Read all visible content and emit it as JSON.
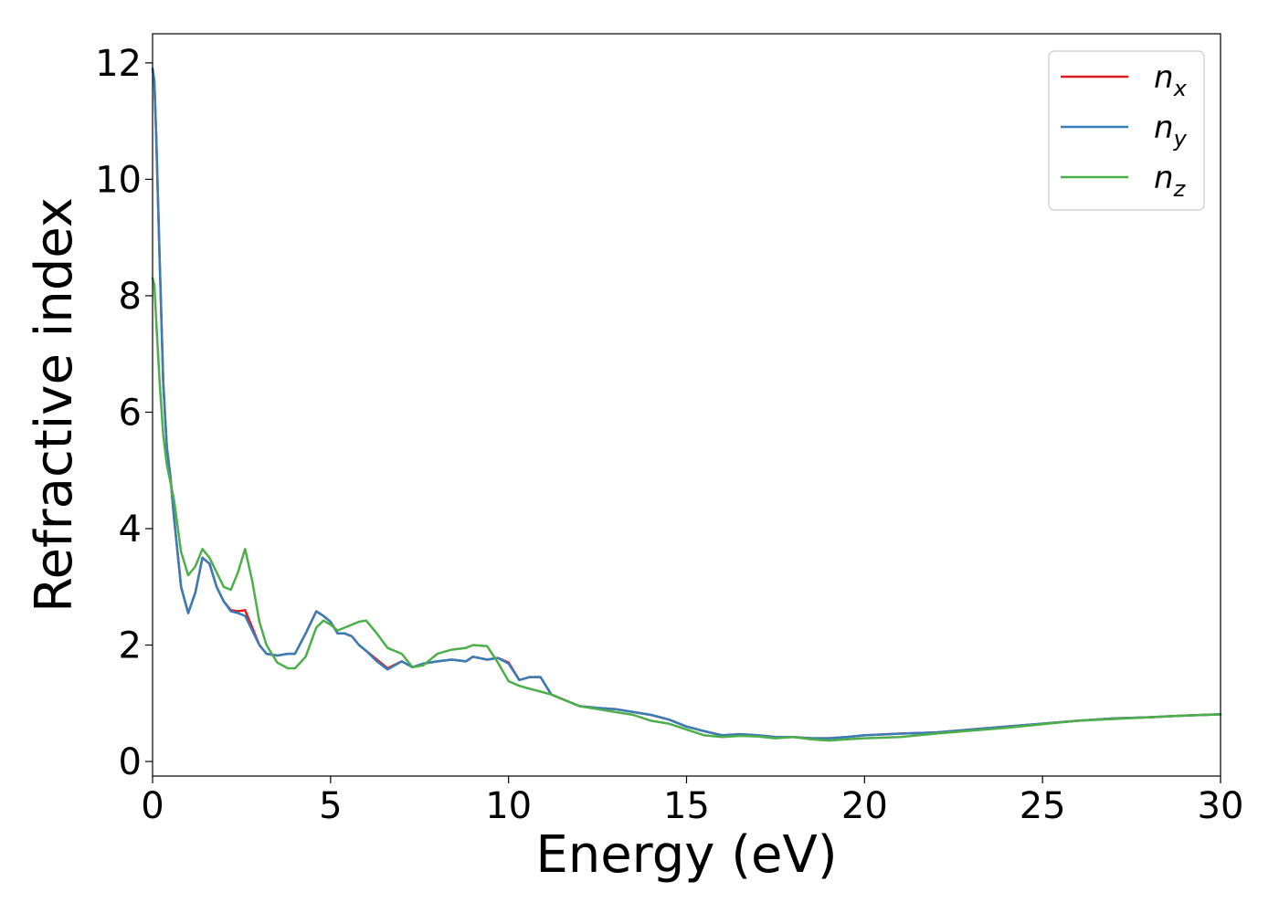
{
  "chart_data": {
    "type": "line",
    "title": "",
    "xlabel": "Energy (eV)",
    "ylabel": "Refractive index",
    "xlim": [
      0,
      30
    ],
    "ylim": [
      -0.25,
      12.5
    ],
    "xticks": [
      0,
      5,
      10,
      15,
      20,
      25,
      30
    ],
    "xtick_labels": [
      "0",
      "5",
      "10",
      "15",
      "20",
      "25",
      "30"
    ],
    "yticks": [
      0,
      2,
      4,
      6,
      8,
      10,
      12
    ],
    "ytick_labels": [
      "0",
      "2",
      "4",
      "6",
      "8",
      "10",
      "12"
    ],
    "grid": false,
    "legend_position": "top-right",
    "series": [
      {
        "name": "n",
        "subscript": "x",
        "color": "#e41a1c",
        "x": [
          0,
          0.05,
          0.1,
          0.2,
          0.3,
          0.4,
          0.5,
          0.6,
          0.8,
          1.0,
          1.2,
          1.4,
          1.6,
          1.8,
          2.0,
          2.2,
          2.4,
          2.6,
          2.8,
          3.0,
          3.2,
          3.5,
          3.8,
          4.0,
          4.3,
          4.6,
          4.8,
          5.0,
          5.2,
          5.4,
          5.6,
          5.8,
          6.0,
          6.3,
          6.6,
          7.0,
          7.3,
          7.6,
          8.0,
          8.4,
          8.8,
          9.0,
          9.4,
          9.7,
          10.0,
          10.3,
          10.6,
          10.9,
          11.2,
          11.6,
          12.0,
          12.5,
          13.0,
          13.5,
          14.0,
          14.5,
          15.0,
          15.5,
          16.0,
          16.5,
          17.0,
          17.5,
          18.0,
          18.5,
          19.0,
          19.5,
          20.0,
          21.0,
          22.0,
          23.0,
          24.0,
          25.0,
          26.0,
          27.0,
          28.0,
          29.0,
          30.0
        ],
        "y": [
          11.9,
          11.7,
          10.8,
          8.6,
          6.5,
          5.4,
          4.9,
          4.2,
          3.0,
          2.55,
          2.9,
          3.5,
          3.4,
          3.0,
          2.75,
          2.6,
          2.58,
          2.6,
          2.3,
          2.0,
          1.85,
          1.82,
          1.85,
          1.85,
          2.2,
          2.58,
          2.5,
          2.4,
          2.2,
          2.2,
          2.15,
          2.0,
          1.9,
          1.75,
          1.6,
          1.72,
          1.62,
          1.68,
          1.72,
          1.75,
          1.72,
          1.8,
          1.75,
          1.78,
          1.7,
          1.4,
          1.45,
          1.45,
          1.15,
          1.05,
          0.95,
          0.92,
          0.9,
          0.85,
          0.8,
          0.72,
          0.6,
          0.52,
          0.45,
          0.47,
          0.45,
          0.42,
          0.42,
          0.4,
          0.4,
          0.42,
          0.45,
          0.48,
          0.5,
          0.55,
          0.6,
          0.65,
          0.7,
          0.74,
          0.76,
          0.79,
          0.81
        ]
      },
      {
        "name": "n",
        "subscript": "y",
        "color": "#377eb8",
        "x": [
          0,
          0.05,
          0.1,
          0.2,
          0.3,
          0.4,
          0.5,
          0.6,
          0.8,
          1.0,
          1.2,
          1.4,
          1.6,
          1.8,
          2.0,
          2.2,
          2.4,
          2.6,
          2.8,
          3.0,
          3.2,
          3.5,
          3.8,
          4.0,
          4.3,
          4.6,
          4.8,
          5.0,
          5.2,
          5.4,
          5.6,
          5.8,
          6.0,
          6.3,
          6.6,
          7.0,
          7.3,
          7.6,
          8.0,
          8.4,
          8.8,
          9.0,
          9.4,
          9.7,
          10.0,
          10.3,
          10.6,
          10.9,
          11.2,
          11.6,
          12.0,
          12.5,
          13.0,
          13.5,
          14.0,
          14.5,
          15.0,
          15.5,
          16.0,
          16.5,
          17.0,
          17.5,
          18.0,
          18.5,
          19.0,
          19.5,
          20.0,
          21.0,
          22.0,
          23.0,
          24.0,
          25.0,
          26.0,
          27.0,
          28.0,
          29.0,
          30.0
        ],
        "y": [
          11.9,
          11.7,
          10.8,
          8.6,
          6.5,
          5.4,
          4.9,
          4.2,
          3.0,
          2.55,
          2.9,
          3.5,
          3.4,
          3.0,
          2.75,
          2.58,
          2.55,
          2.5,
          2.25,
          2.0,
          1.85,
          1.82,
          1.85,
          1.85,
          2.2,
          2.58,
          2.5,
          2.4,
          2.2,
          2.2,
          2.15,
          2.0,
          1.9,
          1.72,
          1.58,
          1.72,
          1.62,
          1.68,
          1.72,
          1.75,
          1.72,
          1.8,
          1.75,
          1.78,
          1.68,
          1.4,
          1.45,
          1.45,
          1.15,
          1.05,
          0.95,
          0.92,
          0.9,
          0.85,
          0.8,
          0.72,
          0.6,
          0.52,
          0.45,
          0.47,
          0.45,
          0.42,
          0.42,
          0.4,
          0.4,
          0.42,
          0.45,
          0.48,
          0.5,
          0.55,
          0.6,
          0.65,
          0.7,
          0.74,
          0.76,
          0.79,
          0.81
        ]
      },
      {
        "name": "n",
        "subscript": "z",
        "color": "#4daf4a",
        "x": [
          0,
          0.05,
          0.1,
          0.2,
          0.3,
          0.4,
          0.5,
          0.6,
          0.8,
          1.0,
          1.2,
          1.4,
          1.6,
          1.8,
          2.0,
          2.2,
          2.4,
          2.6,
          2.8,
          3.0,
          3.2,
          3.5,
          3.8,
          4.0,
          4.3,
          4.6,
          4.8,
          5.0,
          5.2,
          5.4,
          5.6,
          5.8,
          6.0,
          6.3,
          6.6,
          7.0,
          7.3,
          7.6,
          8.0,
          8.4,
          8.8,
          9.0,
          9.4,
          9.7,
          10.0,
          10.3,
          10.6,
          10.9,
          11.2,
          11.6,
          12.0,
          12.5,
          13.0,
          13.5,
          14.0,
          14.5,
          15.0,
          15.5,
          16.0,
          16.5,
          17.0,
          17.5,
          18.0,
          18.5,
          19.0,
          19.5,
          20.0,
          21.0,
          22.0,
          23.0,
          24.0,
          25.0,
          26.0,
          27.0,
          28.0,
          29.0,
          30.0
        ],
        "y": [
          8.3,
          8.2,
          7.6,
          6.5,
          5.6,
          5.1,
          4.8,
          4.5,
          3.6,
          3.2,
          3.35,
          3.65,
          3.5,
          3.25,
          3.0,
          2.95,
          3.25,
          3.65,
          3.1,
          2.4,
          2.0,
          1.7,
          1.6,
          1.6,
          1.8,
          2.3,
          2.42,
          2.35,
          2.25,
          2.3,
          2.35,
          2.4,
          2.42,
          2.2,
          1.95,
          1.85,
          1.62,
          1.65,
          1.85,
          1.92,
          1.95,
          2.0,
          1.98,
          1.7,
          1.38,
          1.3,
          1.25,
          1.2,
          1.15,
          1.05,
          0.95,
          0.9,
          0.85,
          0.8,
          0.7,
          0.65,
          0.55,
          0.45,
          0.42,
          0.44,
          0.43,
          0.4,
          0.42,
          0.38,
          0.36,
          0.38,
          0.4,
          0.42,
          0.48,
          0.53,
          0.58,
          0.64,
          0.7,
          0.73,
          0.76,
          0.79,
          0.81
        ]
      }
    ]
  }
}
